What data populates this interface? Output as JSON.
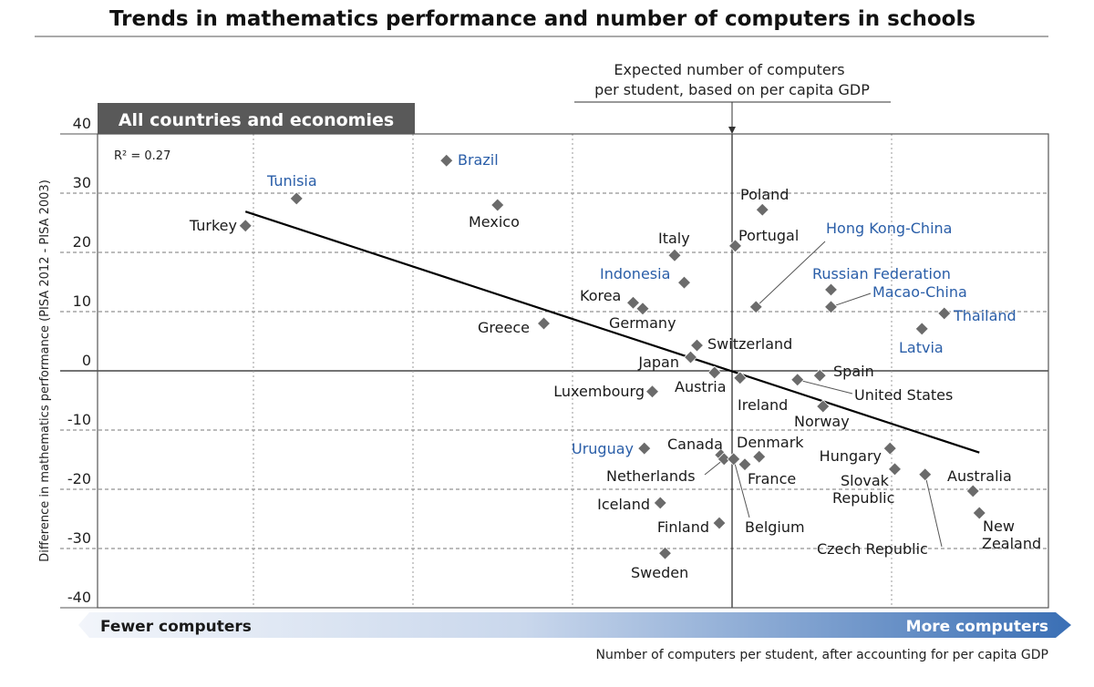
{
  "chart_data": {
    "type": "scatter",
    "title": "Trends in mathematics performance and number of computers in schools",
    "panel_label": "All countries and economies",
    "annotation": [
      "Expected number of computers",
      "per student, based on per capita GDP"
    ],
    "r_squared": "R² = 0.27",
    "ylabel": "Difference in mathematics performance (PISA 2012 - PISA 2003)",
    "xlabel": "Number of computers per student, after accounting for per capita GDP",
    "x_arrow_left": "Fewer computers",
    "x_arrow_right": "More computers",
    "ylim": [
      -40,
      40
    ],
    "yticks": [
      40,
      30,
      20,
      10,
      0,
      -10,
      -20,
      -30,
      -40
    ],
    "xlim": [
      -4,
      2
    ],
    "x_tick_labels_shown": false,
    "grid": true,
    "colors": {
      "marker": "#6b6b6b",
      "oecd_label": "#1a1a1a",
      "partner_label": "#2a5ea8",
      "trend": "#000000",
      "panel": "#595959",
      "arrow_end": "#3a6fb5"
    },
    "trendline": {
      "x": [
        -3.05,
        1.55
      ],
      "y": [
        26.9,
        -13.8
      ]
    },
    "points": [
      {
        "name": "Turkey",
        "x": -3.05,
        "y": 24.5,
        "partner": false
      },
      {
        "name": "Tunisia",
        "x": -2.73,
        "y": 29.1,
        "partner": true
      },
      {
        "name": "Brazil",
        "x": -1.79,
        "y": 35.5,
        "partner": true
      },
      {
        "name": "Mexico",
        "x": -1.47,
        "y": 28.0,
        "partner": false
      },
      {
        "name": "Italy",
        "x": -0.36,
        "y": 19.5,
        "partner": false
      },
      {
        "name": "Indonesia",
        "x": -0.3,
        "y": 14.9,
        "partner": true
      },
      {
        "name": "Korea",
        "x": -0.62,
        "y": 11.5,
        "partner": false
      },
      {
        "name": "Germany",
        "x": -0.56,
        "y": 10.5,
        "partner": false
      },
      {
        "name": "Greece",
        "x": -1.18,
        "y": 8.0,
        "partner": false
      },
      {
        "name": "Poland",
        "x": 0.19,
        "y": 27.2,
        "partner": false
      },
      {
        "name": "Portugal",
        "x": 0.02,
        "y": 21.1,
        "partner": false
      },
      {
        "name": "Hong Kong-China",
        "x": 0.15,
        "y": 10.8,
        "partner": true
      },
      {
        "name": "Russian Federation",
        "x": 0.62,
        "y": 13.7,
        "partner": true
      },
      {
        "name": "Macao-China",
        "x": 0.62,
        "y": 10.8,
        "partner": true
      },
      {
        "name": "Thailand",
        "x": 1.33,
        "y": 9.7,
        "partner": true
      },
      {
        "name": "Latvia",
        "x": 1.19,
        "y": 7.1,
        "partner": true
      },
      {
        "name": "Switzerland",
        "x": -0.22,
        "y": 4.3,
        "partner": false
      },
      {
        "name": "Japan",
        "x": -0.26,
        "y": 2.3,
        "partner": false
      },
      {
        "name": "Austria",
        "x": -0.11,
        "y": -0.3,
        "partner": false
      },
      {
        "name": "Ireland",
        "x": 0.05,
        "y": -1.2,
        "partner": false
      },
      {
        "name": "United States",
        "x": 0.41,
        "y": -1.5,
        "partner": false
      },
      {
        "name": "Spain",
        "x": 0.55,
        "y": -0.8,
        "partner": false
      },
      {
        "name": "Norway",
        "x": 0.57,
        "y": -6.0,
        "partner": false
      },
      {
        "name": "Luxembourg",
        "x": -0.5,
        "y": -3.5,
        "partner": false
      },
      {
        "name": "Uruguay",
        "x": -0.55,
        "y": -13.1,
        "partner": true
      },
      {
        "name": "Canada",
        "x": -0.07,
        "y": -14.2,
        "partner": false
      },
      {
        "name": "Netherlands",
        "x": -0.05,
        "y": -14.9,
        "partner": false
      },
      {
        "name": "Belgium",
        "x": 0.01,
        "y": -14.9,
        "partner": false
      },
      {
        "name": "France",
        "x": 0.08,
        "y": -15.8,
        "partner": false
      },
      {
        "name": "Denmark",
        "x": 0.17,
        "y": -14.5,
        "partner": false
      },
      {
        "name": "Hungary",
        "x": 0.99,
        "y": -13.1,
        "partner": false
      },
      {
        "name": "Slovak Republic",
        "x": 1.02,
        "y": -16.6,
        "partner": false
      },
      {
        "name": "Czech Republic",
        "x": 1.21,
        "y": -17.5,
        "partner": false
      },
      {
        "name": "Australia",
        "x": 1.51,
        "y": -20.3,
        "partner": false
      },
      {
        "name": "New Zealand",
        "x": 1.55,
        "y": -24.0,
        "partner": false
      },
      {
        "name": "Iceland",
        "x": -0.45,
        "y": -22.3,
        "partner": false
      },
      {
        "name": "Finland",
        "x": -0.08,
        "y": -25.7,
        "partner": false
      },
      {
        "name": "Sweden",
        "x": -0.42,
        "y": -30.8,
        "partner": false
      }
    ]
  }
}
